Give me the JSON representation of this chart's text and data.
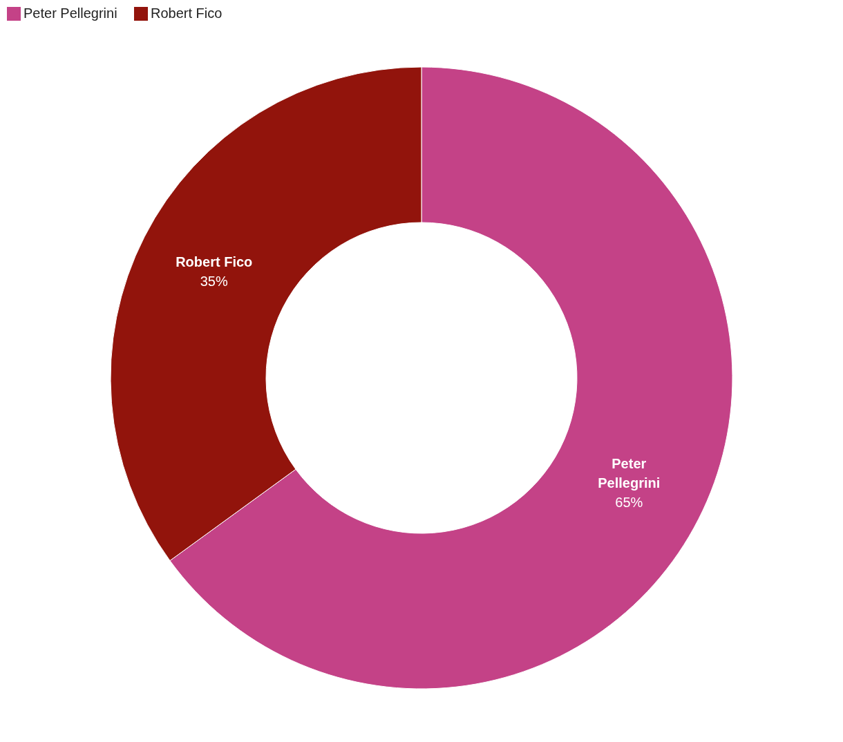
{
  "chart_data": {
    "type": "donut",
    "categories": [
      "Peter Pellegrini",
      "Robert Fico"
    ],
    "values": [
      65,
      35
    ],
    "colors": [
      "#c44287",
      "#92140c"
    ],
    "value_labels": [
      "65%",
      "35%"
    ],
    "legend": "top left"
  }
}
